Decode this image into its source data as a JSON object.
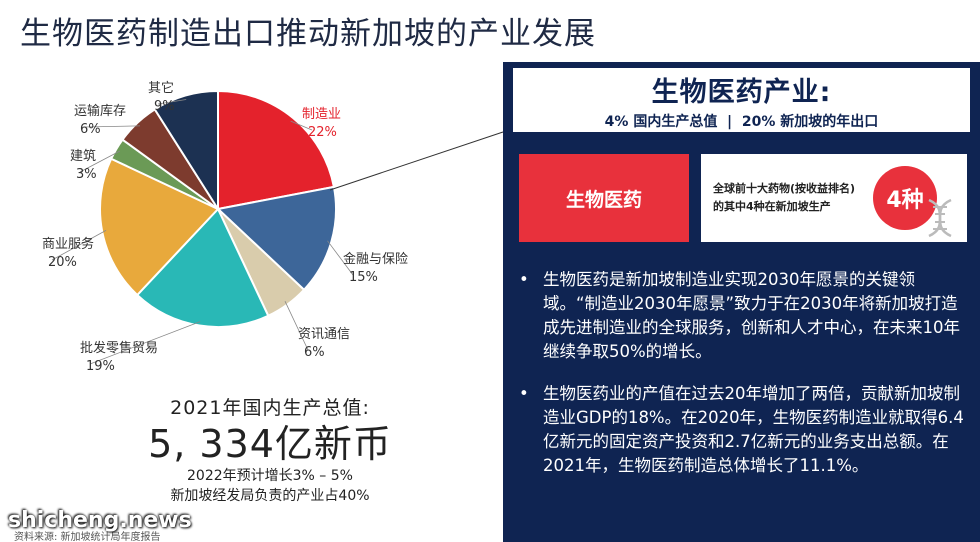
{
  "title": "生物医药制造出口推动新加坡的产业发展",
  "chart_data": {
    "type": "pie",
    "labels": [
      "制造业",
      "金融与保险",
      "资讯通信",
      "批发零售贸易",
      "商业服务",
      "建筑",
      "运输库存",
      "其它"
    ],
    "values": [
      22,
      15,
      6,
      19,
      20,
      3,
      6,
      9
    ],
    "value_labels": [
      "22%",
      "15%",
      "6%",
      "19%",
      "20%",
      "3%",
      "6%",
      "9%"
    ],
    "colors": [
      "#e4222c",
      "#3d6699",
      "#d9ccac",
      "#29b8b6",
      "#e8a93c",
      "#6b9a56",
      "#7d3b2e",
      "#1c3152"
    ],
    "highlight": "制造业"
  },
  "gdp": {
    "title": "2021年国内生产总值:",
    "value": "5, 334亿新币",
    "note1": "2022年预计增长3% – 5%",
    "note2": "新加坡经发局负责的产业占40%"
  },
  "source": "资料来源: 新加坡统计局年度报告",
  "watermark": "shicheng.news",
  "panel": {
    "heading": "生物医药产业:",
    "subheading": "4% 国内生产总值  |  20% 新加坡的年出口",
    "red_box_label": "生物医药",
    "white_box_line1": "全球前十大药物(按收益排名)",
    "white_box_line2": "的其中4种在新加坡生产",
    "badge": "4种",
    "bullets": [
      "生物医药是新加坡制造业实现2030年愿景的关键领域。“制造业2030年愿景”致力于在2030年将新加坡打造成先进制造业的全球服务，创新和人才中心，在未来10年继续争取50%的增长。",
      "生物医药业的产值在过去20年增加了两倍，贡献新加坡制造业GDP的18%。在2020年，生物医药制造业就取得6.4亿新元的固定资产投资和2.7亿新元的业务支出总额。在2021年，生物医药制造总体增长了11.1%。"
    ]
  }
}
